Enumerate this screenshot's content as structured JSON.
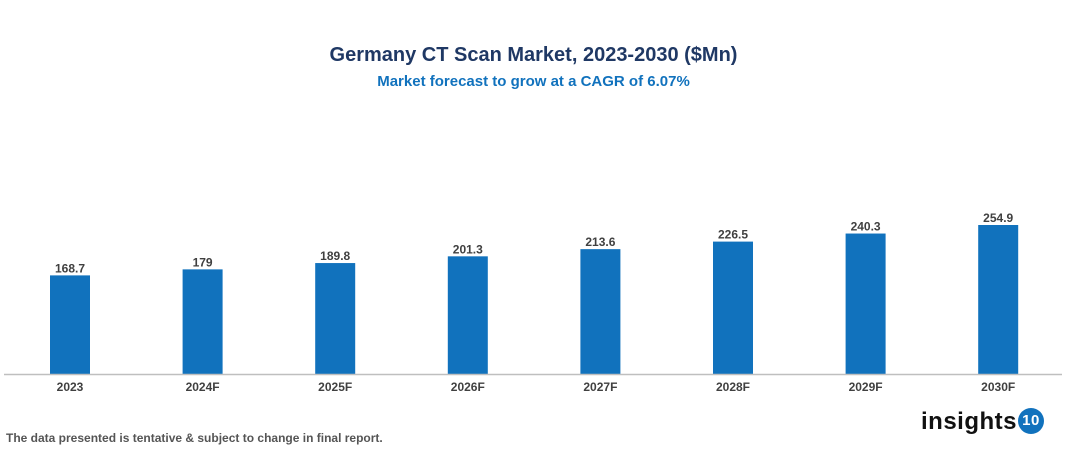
{
  "chart_data": {
    "type": "bar",
    "title": "Germany CT Scan Market, 2023-2030 ($Mn)",
    "subtitle": "Market forecast to grow at a CAGR of 6.07%",
    "categories": [
      "2023",
      "2024F",
      "2025F",
      "2026F",
      "2027F",
      "2028F",
      "2029F",
      "2030F"
    ],
    "values": [
      168.7,
      179,
      189.8,
      201.3,
      213.6,
      226.5,
      240.3,
      254.9
    ],
    "data_labels": [
      "168.7",
      "179",
      "189.8",
      "201.3",
      "213.6",
      "226.5",
      "240.3",
      "254.9"
    ],
    "xlabel": "",
    "ylabel": "",
    "ylim": [
      0,
      254.9
    ],
    "grid": false,
    "legend": "none",
    "bar_color": "#1172bd"
  },
  "footnote": "The data presented is tentative & subject to change in final report.",
  "logo": {
    "text": "insights",
    "badge": "10"
  }
}
